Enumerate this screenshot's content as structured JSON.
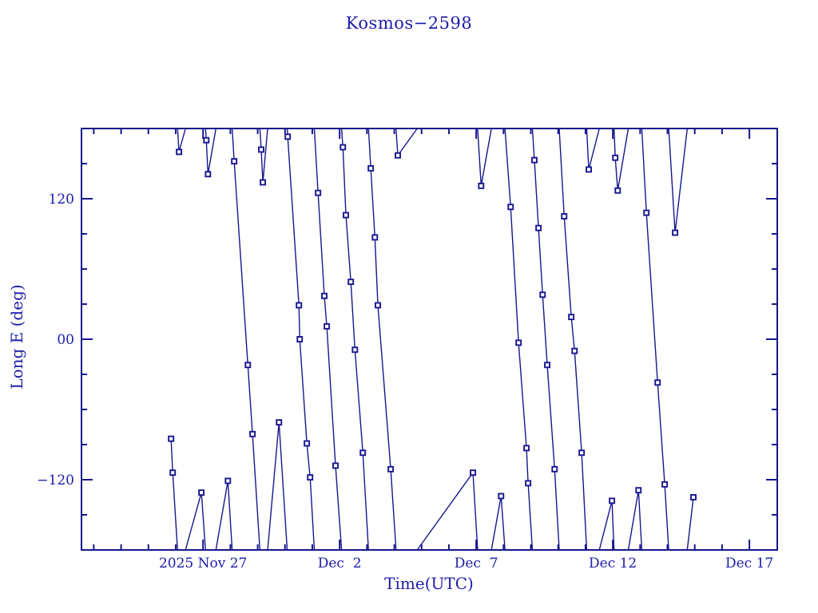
{
  "title": "Kosmos−2598",
  "colors": {
    "background": "#ffffff",
    "ink": "#16168e",
    "text": "#1c1caa",
    "marker_fill": "#ffffff"
  },
  "axes": {
    "x": {
      "label": "Time(UTC)",
      "unit": "days since 2025 Nov 27 00:00 UTC",
      "min": -4.45,
      "max": 21.02,
      "minor_step": 1,
      "major_ticks": [
        {
          "t": 0,
          "label": "2025 Nov 27"
        },
        {
          "t": 5,
          "label": "Dec  2"
        },
        {
          "t": 10,
          "label": "Dec  7"
        },
        {
          "t": 15,
          "label": "Dec 12"
        },
        {
          "t": 20,
          "label": "Dec 17"
        }
      ]
    },
    "y": {
      "label": "Long E (deg)",
      "min": -180,
      "max": 180,
      "minor_step": 30,
      "major_ticks": [
        {
          "v": 120,
          "label": "120"
        },
        {
          "v": 0,
          "label": "00"
        },
        {
          "v": -120,
          "label": "−120"
        }
      ]
    }
  },
  "chart_data": {
    "type": "line",
    "title": "Kosmos−2598",
    "xlabel": "Time(UTC)",
    "ylabel": "Long E (deg)",
    "x_unit": "days since 2025-11-27 00:00 UTC",
    "xlim": [
      -4.45,
      21.02
    ],
    "ylim": [
      -180,
      180
    ],
    "grid": false,
    "legend": "none",
    "marker": "open-square",
    "wrap_degrees": 360,
    "wrap_note": "consecutive points are joined along the shortest longitude arc; segments crossing ±180° exit one horizontal edge and re-enter the opposite edge",
    "series": [
      {
        "name": "sub-satellite longitude",
        "points": [
          [
            -1.17,
            -85
          ],
          [
            -1.11,
            -114
          ],
          [
            -0.88,
            160
          ],
          [
            -0.06,
            -131
          ],
          [
            0.12,
            170
          ],
          [
            0.18,
            141
          ],
          [
            0.91,
            -121
          ],
          [
            1.14,
            152
          ],
          [
            1.64,
            -22
          ],
          [
            1.81,
            -81
          ],
          [
            2.13,
            162
          ],
          [
            2.19,
            134
          ],
          [
            2.78,
            -71
          ],
          [
            3.1,
            173
          ],
          [
            3.51,
            29
          ],
          [
            3.54,
            0
          ],
          [
            3.8,
            -89
          ],
          [
            3.92,
            -118
          ],
          [
            4.21,
            125
          ],
          [
            4.44,
            37
          ],
          [
            4.53,
            11
          ],
          [
            4.85,
            -108
          ],
          [
            5.12,
            164
          ],
          [
            5.23,
            106
          ],
          [
            5.41,
            49
          ],
          [
            5.56,
            -9
          ],
          [
            5.85,
            -97
          ],
          [
            6.14,
            146
          ],
          [
            6.29,
            87
          ],
          [
            6.4,
            29
          ],
          [
            6.87,
            -111
          ],
          [
            7.13,
            157
          ],
          [
            9.88,
            -114
          ],
          [
            10.18,
            131
          ],
          [
            10.91,
            -134
          ],
          [
            11.26,
            113
          ],
          [
            11.55,
            -3
          ],
          [
            11.84,
            -93
          ],
          [
            11.9,
            -123
          ],
          [
            12.13,
            153
          ],
          [
            12.28,
            95
          ],
          [
            12.43,
            38
          ],
          [
            12.6,
            -22
          ],
          [
            12.87,
            -111
          ],
          [
            13.22,
            105
          ],
          [
            13.48,
            19
          ],
          [
            13.6,
            -10
          ],
          [
            13.86,
            -97
          ],
          [
            14.12,
            145
          ],
          [
            14.97,
            -138
          ],
          [
            15.09,
            155
          ],
          [
            15.18,
            127
          ],
          [
            15.94,
            -129
          ],
          [
            16.23,
            108
          ],
          [
            16.64,
            -37
          ],
          [
            16.9,
            -124
          ],
          [
            17.28,
            91
          ],
          [
            17.95,
            -135
          ]
        ]
      }
    ]
  }
}
